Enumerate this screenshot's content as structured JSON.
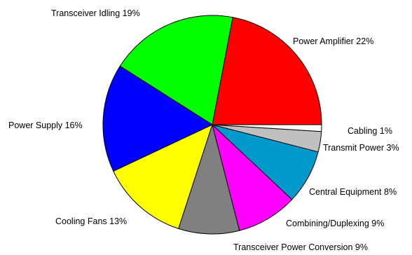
{
  "chart_data": {
    "type": "pie",
    "start_angle_deg": 0,
    "direction": "counterclockwise",
    "slices": [
      {
        "label": "Power Amplifier",
        "value": 22,
        "text": "Power Amplifier 22%",
        "color": "#ff0000"
      },
      {
        "label": "Transceiver Idling",
        "value": 19,
        "text": "Transceiver Idling 19%",
        "color": "#00ff00"
      },
      {
        "label": "Power Supply",
        "value": 16,
        "text": "Power Supply 16%",
        "color": "#0000ff"
      },
      {
        "label": "Cooling Fans",
        "value": 13,
        "text": "Cooling Fans 13%",
        "color": "#ffff00"
      },
      {
        "label": "Transceiver Power Conversion",
        "value": 9,
        "text": "Transceiver Power Conversion 9%",
        "color": "#808080"
      },
      {
        "label": "Combining/Duplexing",
        "value": 9,
        "text": "Combining/Duplexing 9%",
        "color": "#ff00ff"
      },
      {
        "label": "Central Equipment",
        "value": 8,
        "text": "Central Equipment 8%",
        "color": "#0099cc"
      },
      {
        "label": "Transmit Power",
        "value": 3,
        "text": "Transmit Power 3%",
        "color": "#c0c0c0"
      },
      {
        "label": "Cabling",
        "value": 1,
        "text": "Cabling 1%",
        "color": "#ffffff"
      }
    ]
  }
}
